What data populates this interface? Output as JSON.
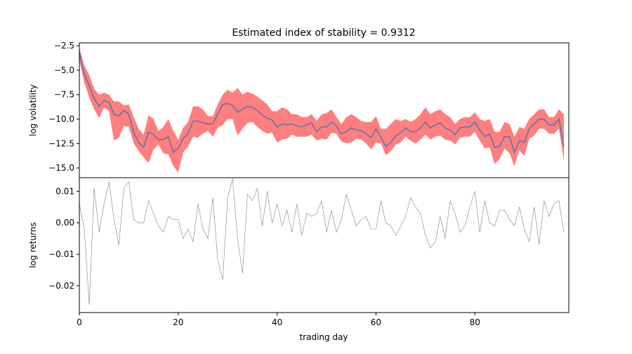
{
  "chart_data": [
    {
      "type": "area",
      "title": "Estimated index of stability = 0.9312",
      "xlabel": "",
      "ylabel": "log volatility",
      "xlim": [
        0,
        99
      ],
      "ylim": [
        -16.0,
        -2.2
      ],
      "yticks": [
        -2.5,
        -5.0,
        -7.5,
        -10.0,
        -12.5,
        -15.0
      ],
      "ytick_labels": [
        "−2.5",
        "−5.0",
        "−7.5",
        "−10.0",
        "−12.5",
        "−15.0"
      ],
      "grid": false,
      "series": [
        {
          "kind": "band",
          "color": "#ff7f7f",
          "upper": [
            -2.7,
            -4.5,
            -5.5,
            -6.9,
            -7.5,
            -7.3,
            -7.5,
            -8.2,
            -8.2,
            -8.6,
            -8.5,
            -9.8,
            -11.0,
            -11.6,
            -9.6,
            -10.0,
            -11.2,
            -10.8,
            -10.0,
            -11.2,
            -12.1,
            -10.9,
            -10.3,
            -8.7,
            -8.7,
            -9.0,
            -9.7,
            -9.7,
            -8.5,
            -7.5,
            -7.0,
            -7.3,
            -6.8,
            -7.5,
            -7.2,
            -7.4,
            -7.7,
            -8.1,
            -8.5,
            -9.2,
            -9.2,
            -8.8,
            -9.0,
            -9.5,
            -9.5,
            -9.8,
            -9.8,
            -9.5,
            -10.2,
            -9.5,
            -9.4,
            -9.0,
            -9.8,
            -10.5,
            -9.8,
            -9.5,
            -9.8,
            -10.2,
            -10.3,
            -10.3,
            -9.7,
            -11.0,
            -11.0,
            -10.5,
            -10.0,
            -10.2,
            -10.0,
            -10.3,
            -10.0,
            -9.5,
            -8.8,
            -9.5,
            -9.2,
            -9.0,
            -9.5,
            -9.8,
            -10.5,
            -10.0,
            -9.8,
            -9.8,
            -9.3,
            -10.0,
            -10.2,
            -10.0,
            -11.3,
            -11.3,
            -10.3,
            -10.5,
            -11.8,
            -10.8,
            -11.0,
            -10.0,
            -9.5,
            -9.0,
            -9.0,
            -9.8,
            -9.8,
            -9.0,
            -9.5
          ],
          "lower": [
            -4.0,
            -6.3,
            -7.8,
            -9.0,
            -9.9,
            -8.8,
            -9.2,
            -12.2,
            -11.9,
            -10.7,
            -10.8,
            -12.5,
            -13.3,
            -13.9,
            -14.5,
            -13.1,
            -12.6,
            -13.5,
            -13.6,
            -14.8,
            -15.5,
            -13.4,
            -12.8,
            -11.8,
            -11.9,
            -11.5,
            -11.2,
            -11.8,
            -10.9,
            -10.6,
            -10.0,
            -10.0,
            -11.7,
            -11.0,
            -10.4,
            -10.3,
            -10.8,
            -11.2,
            -11.5,
            -11.4,
            -12.4,
            -12.1,
            -12.0,
            -11.6,
            -11.8,
            -11.8,
            -11.8,
            -11.6,
            -12.2,
            -12.0,
            -12.1,
            -11.4,
            -11.5,
            -12.3,
            -12.5,
            -12.4,
            -12.0,
            -12.1,
            -12.5,
            -13.1,
            -12.4,
            -12.5,
            -13.7,
            -13.3,
            -12.6,
            -12.4,
            -11.8,
            -12.2,
            -12.5,
            -12.1,
            -11.6,
            -12.1,
            -11.8,
            -11.7,
            -12.1,
            -12.2,
            -12.6,
            -11.9,
            -11.8,
            -11.8,
            -11.3,
            -12.2,
            -13.0,
            -12.9,
            -14.6,
            -14.1,
            -13.0,
            -13.5,
            -14.8,
            -13.2,
            -13.8,
            -12.0,
            -11.7,
            -11.0,
            -11.0,
            -11.5,
            -11.5,
            -11.0,
            -14.3
          ]
        },
        {
          "kind": "line",
          "color": "#4c72b0",
          "values": [
            -3.2,
            -5.4,
            -6.6,
            -7.9,
            -8.7,
            -8.1,
            -8.3,
            -9.5,
            -9.7,
            -9.1,
            -9.5,
            -11.4,
            -12.4,
            -12.9,
            -11.3,
            -11.6,
            -12.1,
            -12.1,
            -11.8,
            -13.4,
            -13.0,
            -12.0,
            -11.5,
            -10.2,
            -10.2,
            -10.4,
            -10.5,
            -10.5,
            -9.5,
            -8.5,
            -8.4,
            -8.6,
            -9.3,
            -9.0,
            -8.7,
            -8.8,
            -9.1,
            -9.6,
            -9.9,
            -10.1,
            -10.8,
            -10.5,
            -10.6,
            -10.5,
            -10.7,
            -10.8,
            -10.6,
            -10.4,
            -11.3,
            -10.8,
            -10.8,
            -10.3,
            -10.7,
            -11.5,
            -11.3,
            -10.9,
            -11.1,
            -11.2,
            -11.5,
            -11.9,
            -11.0,
            -11.9,
            -12.8,
            -12.4,
            -11.7,
            -11.4,
            -10.9,
            -11.3,
            -11.3,
            -10.9,
            -10.3,
            -10.9,
            -10.6,
            -10.4,
            -10.9,
            -11.1,
            -11.6,
            -10.9,
            -10.8,
            -10.8,
            -10.3,
            -11.1,
            -11.8,
            -11.5,
            -12.9,
            -12.8,
            -11.8,
            -11.8,
            -13.4,
            -12.2,
            -12.4,
            -11.0,
            -10.5,
            -10.0,
            -10.0,
            -10.6,
            -10.6,
            -10.0,
            -12.8
          ]
        }
      ]
    },
    {
      "type": "line",
      "title": "",
      "xlabel": "trading day",
      "ylabel": "log returns",
      "xlim": [
        0,
        99
      ],
      "ylim": [
        -0.0285,
        0.0143
      ],
      "xticks": [
        0,
        20,
        40,
        60,
        80
      ],
      "xtick_labels": [
        "0",
        "20",
        "40",
        "60",
        "80"
      ],
      "yticks": [
        0.01,
        0.0,
        -0.01,
        -0.02
      ],
      "ytick_labels": [
        "0.01",
        "0.00",
        "−0.01",
        "−0.02"
      ],
      "grid": false,
      "series": [
        {
          "kind": "line",
          "color": "#808080",
          "values": [
            0.006,
            -0.002,
            -0.026,
            0.011,
            -0.003,
            0.006,
            0.013,
            0.001,
            -0.007,
            0.011,
            0.013,
            0.001,
            0.0,
            0.0,
            0.007,
            0.003,
            -0.001,
            -0.003,
            0.002,
            0.001,
            0.001,
            -0.005,
            -0.002,
            -0.006,
            0.006,
            -0.002,
            -0.005,
            0.008,
            -0.012,
            -0.018,
            0.008,
            0.014,
            -0.005,
            -0.016,
            0.009,
            0.007,
            0.011,
            -0.001,
            0.01,
            0.0,
            0.006,
            -0.001,
            0.004,
            -0.003,
            0.006,
            -0.004,
            0.003,
            0.002,
            0.003,
            0.007,
            -0.003,
            0.004,
            -0.003,
            0.001,
            0.009,
            0.004,
            -0.001,
            0.001,
            0.002,
            -0.002,
            -0.002,
            0.007,
            0.0,
            -0.001,
            -0.004,
            -0.001,
            0.002,
            0.008,
            0.005,
            0.003,
            -0.004,
            -0.008,
            -0.006,
            0.002,
            -0.005,
            0.007,
            0.003,
            -0.003,
            -0.001,
            0.005,
            0.01,
            -0.003,
            0.007,
            0.0,
            -0.001,
            0.004,
            0.004,
            0.001,
            -0.001,
            0.005,
            -0.002,
            -0.006,
            0.005,
            -0.007,
            0.007,
            0.002,
            0.006,
            0.007,
            -0.003
          ]
        }
      ]
    }
  ]
}
